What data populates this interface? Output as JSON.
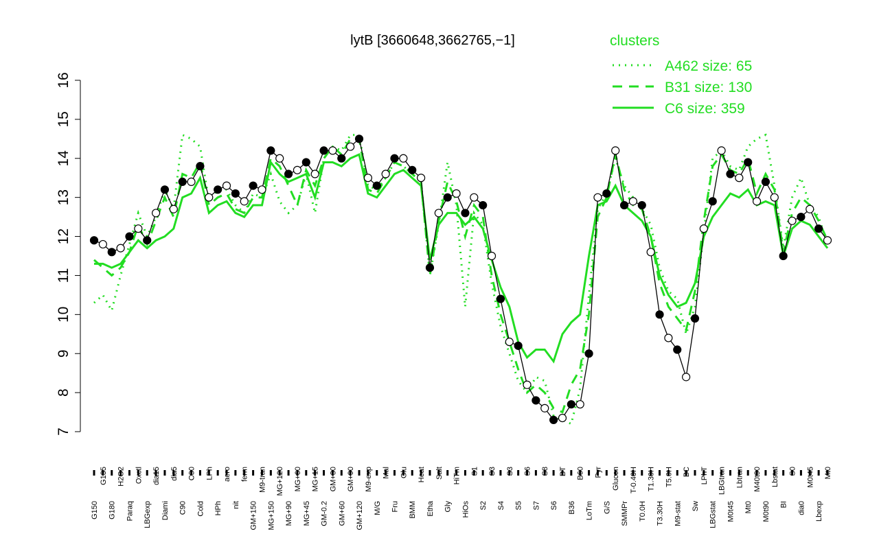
{
  "chart_data": {
    "type": "line",
    "title": "lytB [3660648,3662765,−1]",
    "legend_title": "clusters",
    "legend_position": "top-right",
    "categories": [
      "G150",
      "G135",
      "G180",
      "H2O2",
      "Paraq",
      "Oxctl",
      "LBGexp",
      "dia15",
      "Diami",
      "dia5",
      "C90",
      "C30",
      "Cold",
      "LPh",
      "HPh",
      "aero",
      "nit",
      "ferm",
      "GM+150",
      "M9-tran",
      "MG+150",
      "MG+120",
      "MG+90",
      "MG+60",
      "MG+45",
      "MG+15",
      "GM-0.2",
      "GM+30",
      "GM+60",
      "GM+90",
      "GM+120",
      "M9-exp",
      "M/G",
      "Mal",
      "Fru",
      "Glu",
      "BMM",
      "Heat",
      "Etha",
      "Salt",
      "Gly",
      "HiTm",
      "HiOs",
      "S1",
      "S2",
      "S3",
      "S4",
      "S3",
      "S5",
      "S6",
      "S7",
      "S8",
      "S6",
      "BT",
      "B36",
      "B60",
      "LoTm",
      "Pyr",
      "G/S",
      "Glucon",
      "SMMPr",
      "T-0.40H",
      "T0.0H",
      "T1.30H",
      "T3.30H",
      "T5.0H",
      "M9-stat",
      "BC",
      "Sw",
      "LPhT",
      "LBGstat",
      "LBGtran",
      "M0t45",
      "Lbtran",
      "Mt0",
      "M40t90",
      "M0t90",
      "Lbstat",
      "BI",
      "S0",
      "dia0",
      "M0t45",
      "Lbexp",
      "Mt0"
    ],
    "ylim": [
      7,
      16
    ],
    "yticks": [
      7,
      8,
      9,
      10,
      11,
      12,
      13,
      14,
      15,
      16
    ],
    "series": [
      {
        "name": "A462 size: 65",
        "color": "#22dd22",
        "style": "dotted",
        "values": [
          10.3,
          10.5,
          10.1,
          11.0,
          11.8,
          12.6,
          12.0,
          12.5,
          13.2,
          12.7,
          14.6,
          14.5,
          14.3,
          12.9,
          13.2,
          13.2,
          12.8,
          12.6,
          13.1,
          13.0,
          13.6,
          12.9,
          12.6,
          12.8,
          13.6,
          12.6,
          14.0,
          14.3,
          14.2,
          14.6,
          14.6,
          13.3,
          13.2,
          13.5,
          13.9,
          13.8,
          13.6,
          13.4,
          11.0,
          12.3,
          13.9,
          12.8,
          10.2,
          12.6,
          12.3,
          10.8,
          9.7,
          9.0,
          8.3,
          8.0,
          8.4,
          8.3,
          7.4,
          7.3,
          7.2,
          8.1,
          10.5,
          12.7,
          13.1,
          14.0,
          13.3,
          13.0,
          12.7,
          12.3,
          11.2,
          10.6,
          10.4,
          9.5,
          10.2,
          12.1,
          14.0,
          14.2,
          13.8,
          13.7,
          14.3,
          14.5,
          14.6,
          13.3,
          11.7,
          13.0,
          13.5,
          12.8,
          12.5,
          11.8
        ]
      },
      {
        "name": "B31 size: 130",
        "color": "#22dd22",
        "style": "dashed",
        "values": [
          11.4,
          11.2,
          11.0,
          11.2,
          11.6,
          12.3,
          11.8,
          12.4,
          13.0,
          12.5,
          13.6,
          13.5,
          13.9,
          12.8,
          13.0,
          13.1,
          12.7,
          12.6,
          13.0,
          13.0,
          14.0,
          13.8,
          13.3,
          12.8,
          13.7,
          13.3,
          14.0,
          14.3,
          14.1,
          14.5,
          14.5,
          13.2,
          13.1,
          13.5,
          13.9,
          13.8,
          13.6,
          13.4,
          11.0,
          12.4,
          13.4,
          12.9,
          12.0,
          12.8,
          12.5,
          11.0,
          10.0,
          9.3,
          8.6,
          8.0,
          8.2,
          8.0,
          7.6,
          7.5,
          8.2,
          8.6,
          10.0,
          12.5,
          13.0,
          14.1,
          13.2,
          12.8,
          12.7,
          12.0,
          10.8,
          10.2,
          9.9,
          9.6,
          10.6,
          12.4,
          13.8,
          14.1,
          13.7,
          13.6,
          14.0,
          13.1,
          13.6,
          13.2,
          11.6,
          12.6,
          13.0,
          12.8,
          12.4,
          11.9
        ]
      },
      {
        "name": "C6 size: 359",
        "color": "#22dd22",
        "style": "solid",
        "values": [
          11.3,
          11.3,
          11.2,
          11.3,
          11.6,
          11.9,
          11.7,
          11.9,
          12.0,
          12.2,
          13.0,
          13.1,
          13.5,
          12.6,
          12.8,
          12.9,
          12.6,
          12.5,
          12.8,
          12.8,
          13.9,
          13.6,
          13.4,
          13.5,
          13.6,
          13.0,
          13.9,
          13.9,
          13.8,
          14.0,
          14.1,
          13.1,
          13.0,
          13.3,
          13.6,
          13.7,
          13.5,
          13.3,
          11.4,
          12.3,
          12.6,
          12.6,
          12.3,
          12.5,
          12.2,
          11.4,
          10.7,
          10.2,
          9.3,
          8.9,
          9.1,
          9.1,
          8.8,
          9.5,
          9.8,
          10.0,
          11.5,
          12.8,
          12.9,
          13.3,
          12.8,
          12.6,
          12.4,
          12.0,
          11.0,
          10.5,
          10.2,
          10.3,
          10.8,
          12.0,
          12.5,
          12.8,
          13.1,
          13.0,
          13.2,
          12.8,
          12.9,
          12.8,
          11.5,
          12.2,
          12.4,
          12.3,
          12.0,
          11.7
        ]
      },
      {
        "color": "#000000",
        "style": "points",
        "values": [
          11.9,
          11.8,
          11.6,
          11.7,
          12.0,
          12.2,
          11.9,
          12.6,
          13.2,
          12.7,
          13.4,
          13.4,
          13.8,
          13.0,
          13.2,
          13.3,
          13.1,
          12.9,
          13.3,
          13.2,
          14.2,
          14.0,
          13.6,
          13.7,
          13.9,
          13.6,
          14.2,
          14.2,
          14.0,
          14.3,
          14.5,
          13.5,
          13.3,
          13.6,
          14.0,
          14.0,
          13.7,
          13.5,
          11.2,
          12.6,
          13.0,
          13.1,
          12.6,
          13.0,
          12.8,
          11.5,
          10.4,
          9.3,
          9.2,
          8.2,
          7.8,
          7.6,
          7.3,
          7.35,
          7.7,
          7.7,
          9.0,
          13.0,
          13.1,
          14.2,
          12.8,
          12.9,
          12.8,
          11.6,
          10.0,
          9.4,
          9.1,
          8.4,
          9.9,
          12.2,
          12.9,
          14.2,
          13.6,
          13.5,
          13.9,
          12.9,
          13.4,
          13.0,
          11.5,
          12.4,
          12.5,
          12.7,
          12.2,
          11.9
        ]
      }
    ]
  }
}
